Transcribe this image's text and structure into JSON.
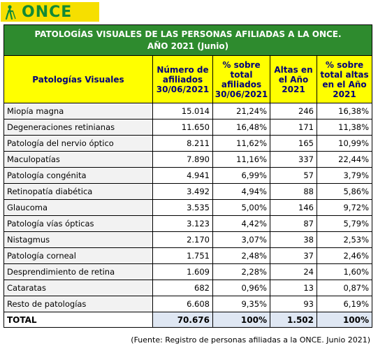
{
  "logo": {
    "text": "ONCE",
    "icon": "once-person-with-cane-icon"
  },
  "table": {
    "title_line1": "PATOLOGÍAS VISUALES DE LAS PERSONAS AFILIADAS A LA ONCE.",
    "title_line2": "AÑO 2021 (Junio)",
    "headers": [
      "Patologías Visuales",
      "Número de afiliados 30/06/2021",
      "% sobre total afiliados 30/06/2021",
      "Altas en el Año 2021",
      "% sobre total altas en el Año 2021"
    ],
    "rows": [
      [
        "Miopía magna",
        "15.014",
        "21,24%",
        "246",
        "16,38%"
      ],
      [
        "Degeneraciones retinianas",
        "11.650",
        "16,48%",
        "171",
        "11,38%"
      ],
      [
        "Patología del nervio óptico",
        "8.211",
        "11,62%",
        "165",
        "10,99%"
      ],
      [
        "Maculopatías",
        "7.890",
        "11,16%",
        "337",
        "22,44%"
      ],
      [
        "Patología congénita",
        "4.941",
        "6,99%",
        "57",
        "3,79%"
      ],
      [
        "Retinopatía diabética",
        "3.492",
        "4,94%",
        "88",
        "5,86%"
      ],
      [
        "Glaucoma",
        "3.535",
        "5,00%",
        "146",
        "9,72%"
      ],
      [
        "Patología vías ópticas",
        "3.123",
        "4,42%",
        "87",
        "5,79%"
      ],
      [
        "Nistagmus",
        "2.170",
        "3,07%",
        "38",
        "2,53%"
      ],
      [
        "Patología corneal",
        "1.751",
        "2,48%",
        "37",
        "2,46%"
      ],
      [
        "Desprendimiento de retina",
        "1.609",
        "2,28%",
        "24",
        "1,60%"
      ],
      [
        "Cataratas",
        "682",
        "0,96%",
        "13",
        "0,87%"
      ],
      [
        "Resto de patologías",
        "6.608",
        "9,35%",
        "93",
        "6,19%"
      ]
    ],
    "total": [
      "TOTAL",
      "70.676",
      "100%",
      "1.502",
      "100%"
    ]
  },
  "source": "(Fuente: Registro de personas afiliadas a la ONCE. Junio 2021)",
  "colors": {
    "logo_bg": "#f6df00",
    "logo_text": "#128a35",
    "title_bg": "#2e8b2e",
    "header_bg": "#ffff00",
    "header_text": "#00007a",
    "total_bg": "#dfe7f3"
  }
}
